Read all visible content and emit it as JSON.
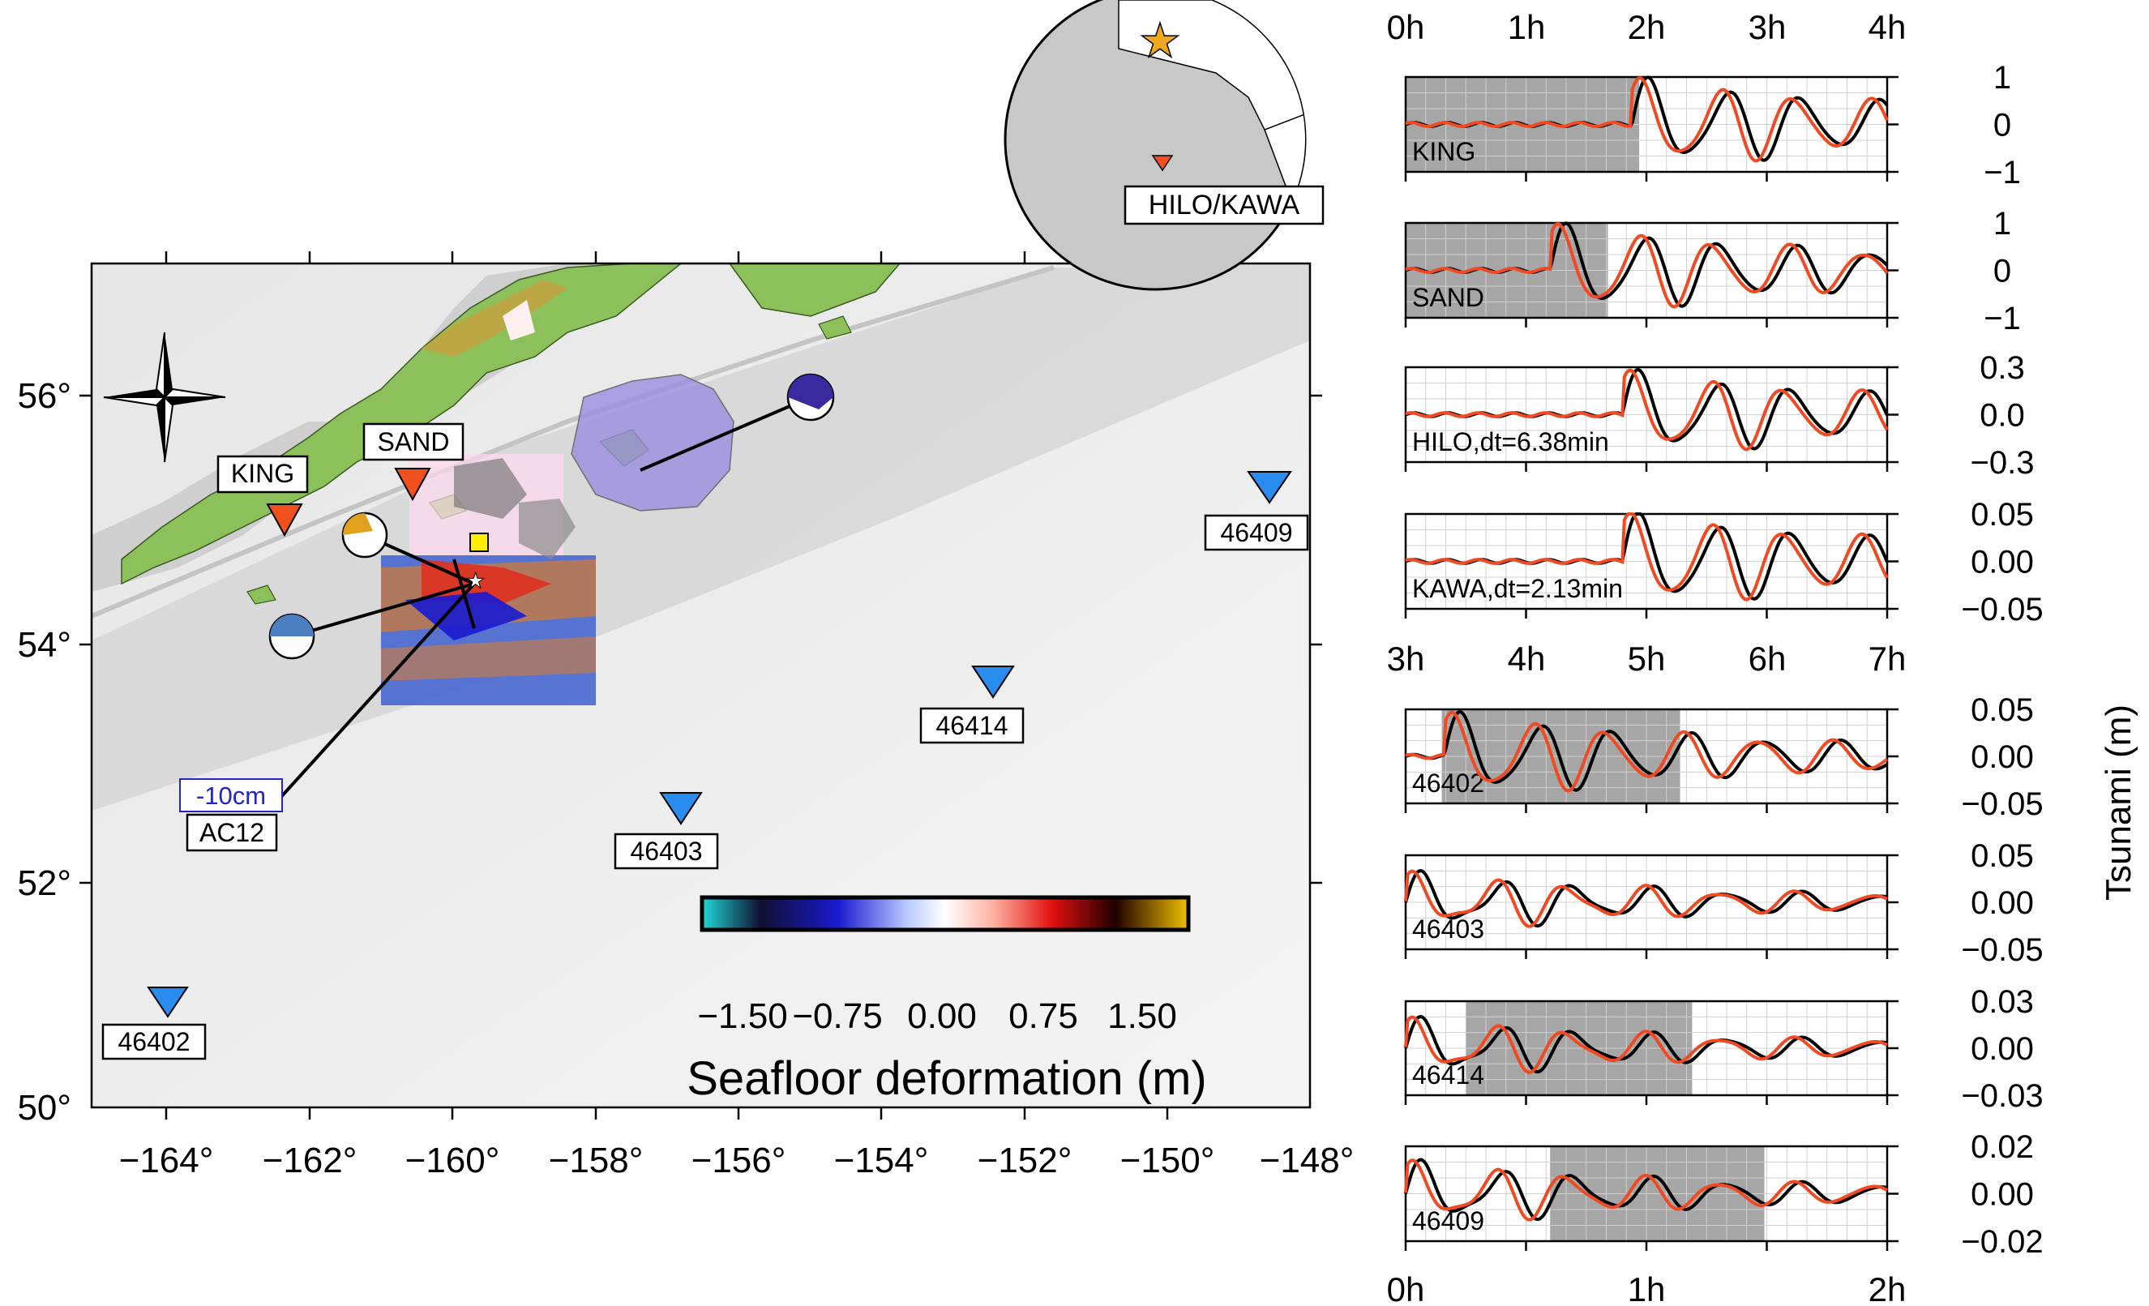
{
  "map": {
    "lon_ticks": [
      "−164°",
      "−162°",
      "−160°",
      "−158°",
      "−156°",
      "−154°",
      "−152°",
      "−150°",
      "−148°"
    ],
    "lat_ticks": [
      "56°",
      "54°",
      "52°",
      "50°"
    ],
    "stations": {
      "king": "KING",
      "sand": "SAND",
      "s46409": "46409",
      "s46414": "46414",
      "s46403": "46403",
      "s46402": "46402",
      "ac12": "AC12",
      "ac12_value": "-10cm"
    },
    "colorbar": {
      "title": "Seafloor deformation (m)",
      "ticks": [
        "−1.50",
        "−0.75",
        "0.00",
        "0.75",
        "1.50"
      ]
    },
    "inset_label": "HILO/KAWA"
  },
  "panels": {
    "top_time_ticks": [
      "0h",
      "1h",
      "2h",
      "3h",
      "4h"
    ],
    "mid_time_ticks": [
      "3h",
      "4h",
      "5h",
      "6h",
      "7h"
    ],
    "bottom_time_ticks": [
      "0h",
      "1h",
      "2h"
    ],
    "ylabel": "Tsunami (m)",
    "items": [
      {
        "label": "KING",
        "yticks": [
          "1",
          "0",
          "−1"
        ]
      },
      {
        "label": "SAND",
        "yticks": [
          "1",
          "0",
          "−1"
        ]
      },
      {
        "label": "HILO,dt=6.38min",
        "yticks": [
          "0.3",
          "0.0",
          "−0.3"
        ]
      },
      {
        "label": "KAWA,dt=2.13min",
        "yticks": [
          "0.05",
          "0.00",
          "−0.05"
        ]
      },
      {
        "label": "46402",
        "yticks": [
          "0.05",
          "0.00",
          "−0.05"
        ]
      },
      {
        "label": "46403",
        "yticks": [
          "0.05",
          "0.00",
          "−0.05"
        ]
      },
      {
        "label": "46414",
        "yticks": [
          "0.03",
          "0.00",
          "−0.03"
        ]
      },
      {
        "label": "46409",
        "yticks": [
          "0.02",
          "0.00",
          "−0.02"
        ]
      }
    ]
  },
  "colors": {
    "observed": "#000000",
    "synthetic": "#f04a23",
    "land_station": "#f0501e",
    "dart_station": "#2b8cf0",
    "slip_patch": "#9b8ee0",
    "window_shade": "#a6a6a6"
  }
}
